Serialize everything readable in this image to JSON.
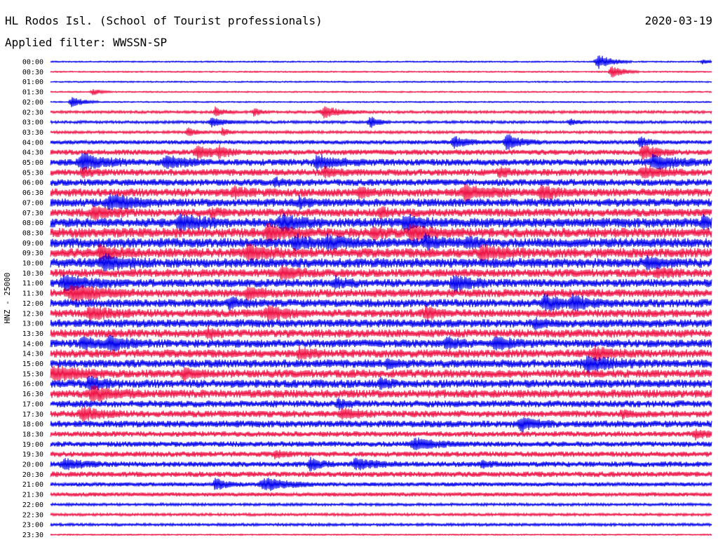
{
  "header": {
    "station": "HL Rodos Isl. (School of Tourist professionals)",
    "date": "2020-03-19",
    "filter_label": "Applied filter: WWSSN-SP"
  },
  "chart_data": {
    "type": "line",
    "title": "HL Rodos Isl. (School of Tourist professionals)",
    "subtitle": "Applied filter: WWSSN-SP",
    "ylabel": "HNZ - 25000",
    "xlabel": "",
    "rows": [
      "00:00",
      "00:30",
      "01:00",
      "01:30",
      "02:00",
      "02:30",
      "03:00",
      "03:30",
      "04:00",
      "04:30",
      "05:00",
      "05:30",
      "06:00",
      "06:30",
      "07:00",
      "07:30",
      "08:00",
      "08:30",
      "09:00",
      "09:30",
      "10:00",
      "10:30",
      "11:00",
      "11:30",
      "12:00",
      "12:30",
      "13:00",
      "13:30",
      "14:00",
      "14:30",
      "15:00",
      "15:30",
      "16:00",
      "16:30",
      "17:00",
      "17:30",
      "18:00",
      "18:30",
      "19:00",
      "19:30",
      "20:00",
      "20:30",
      "21:00",
      "21:30",
      "22:00",
      "22:30",
      "23:00",
      "23:30"
    ],
    "colors": [
      "#0000ee",
      "#ee1144"
    ],
    "noise_level": [
      1,
      1,
      1,
      1,
      1,
      2,
      2,
      2,
      3,
      4,
      5,
      5,
      5,
      6,
      6,
      6,
      7,
      7,
      7,
      7,
      7,
      6,
      6,
      6,
      6,
      6,
      6,
      6,
      6,
      6,
      6,
      6,
      6,
      6,
      5,
      5,
      5,
      4,
      4,
      4,
      4,
      4,
      3,
      3,
      2,
      2,
      2,
      1
    ],
    "bursts": [
      [
        [
          930,
          2,
          3
        ],
        [
          780,
          7,
          5
        ]
      ],
      [
        [
          800,
          6,
          4
        ]
      ],
      [],
      [
        [
          60,
          3,
          3
        ]
      ],
      [
        [
          30,
          5,
          4
        ]
      ],
      [
        [
          390,
          5,
          6
        ],
        [
          235,
          4,
          3
        ],
        [
          290,
          4,
          2
        ]
      ],
      [
        [
          230,
          4,
          5
        ],
        [
          455,
          6,
          3
        ],
        [
          740,
          3,
          3
        ]
      ],
      [
        [
          195,
          4,
          3
        ],
        [
          245,
          4,
          2
        ]
      ],
      [
        [
          575,
          5,
          5
        ],
        [
          650,
          7,
          5
        ],
        [
          840,
          5,
          3
        ]
      ],
      [
        [
          210,
          5,
          6
        ],
        [
          845,
          7,
          5
        ],
        [
          240,
          4,
          3
        ]
      ],
      [
        [
          45,
          7,
          7
        ],
        [
          165,
          5,
          6
        ],
        [
          380,
          5,
          7
        ],
        [
          860,
          6,
          8
        ]
      ],
      [
        [
          45,
          4,
          3
        ],
        [
          390,
          4,
          4
        ],
        [
          640,
          4,
          3
        ],
        [
          845,
          5,
          6
        ]
      ],
      [
        [
          320,
          3,
          3
        ]
      ],
      [
        [
          590,
          6,
          8
        ],
        [
          700,
          5,
          6
        ],
        [
          260,
          4,
          4
        ],
        [
          440,
          4,
          4
        ]
      ],
      [
        [
          85,
          6,
          8
        ],
        [
          355,
          4,
          3
        ]
      ],
      [
        [
          60,
          5,
          6
        ],
        [
          230,
          3,
          3
        ],
        [
          470,
          4,
          3
        ]
      ],
      [
        [
          185,
          6,
          7
        ],
        [
          330,
          7,
          6
        ],
        [
          505,
          6,
          5
        ],
        [
          930,
          4,
          3
        ]
      ],
      [
        [
          310,
          7,
          6
        ],
        [
          460,
          4,
          4
        ],
        [
          515,
          6,
          6
        ]
      ],
      [
        [
          350,
          5,
          6
        ],
        [
          395,
          5,
          6
        ],
        [
          535,
          5,
          5
        ],
        [
          595,
          4,
          3
        ]
      ],
      [
        [
          70,
          6,
          5
        ],
        [
          280,
          6,
          6
        ],
        [
          615,
          6,
          7
        ]
      ],
      [
        [
          75,
          6,
          7
        ],
        [
          850,
          4,
          4
        ]
      ],
      [
        [
          330,
          6,
          5
        ],
        [
          865,
          4,
          4
        ]
      ],
      [
        [
          20,
          6,
          8
        ],
        [
          405,
          4,
          4
        ],
        [
          575,
          7,
          5
        ]
      ],
      [
        [
          30,
          7,
          9
        ],
        [
          280,
          5,
          5
        ]
      ],
      [
        [
          255,
          5,
          4
        ],
        [
          705,
          6,
          6
        ],
        [
          745,
          5,
          6
        ]
      ],
      [
        [
          55,
          5,
          6
        ],
        [
          310,
          5,
          7
        ],
        [
          535,
          5,
          4
        ]
      ],
      [
        [
          690,
          4,
          3
        ]
      ],
      [
        [
          225,
          4,
          3
        ]
      ],
      [
        [
          45,
          5,
          5
        ],
        [
          85,
          5,
          6
        ],
        [
          565,
          4,
          4
        ],
        [
          635,
          5,
          6
        ]
      ],
      [
        [
          355,
          5,
          4
        ],
        [
          775,
          5,
          6
        ]
      ],
      [
        [
          765,
          6,
          8
        ],
        [
          480,
          3,
          4
        ]
      ],
      [
        [
          5,
          6,
          8
        ],
        [
          190,
          4,
          4
        ]
      ],
      [
        [
          55,
          5,
          5
        ],
        [
          470,
          4,
          3
        ]
      ],
      [
        [
          60,
          6,
          7
        ]
      ],
      [
        [
          410,
          4,
          3
        ]
      ],
      [
        [
          45,
          5,
          6
        ],
        [
          415,
          5,
          5
        ],
        [
          815,
          3,
          3
        ]
      ],
      [
        [
          670,
          6,
          5
        ]
      ],
      [
        [
          920,
          4,
          4
        ]
      ],
      [
        [
          520,
          5,
          7
        ]
      ],
      [
        [
          320,
          3,
          3
        ]
      ],
      [
        [
          20,
          5,
          6
        ],
        [
          370,
          5,
          4
        ],
        [
          435,
          5,
          6
        ],
        [
          615,
          3,
          3
        ]
      ],
      [],
      [
        [
          235,
          5,
          4
        ],
        [
          305,
          6,
          8
        ]
      ],
      [],
      [],
      [],
      [],
      []
    ]
  }
}
